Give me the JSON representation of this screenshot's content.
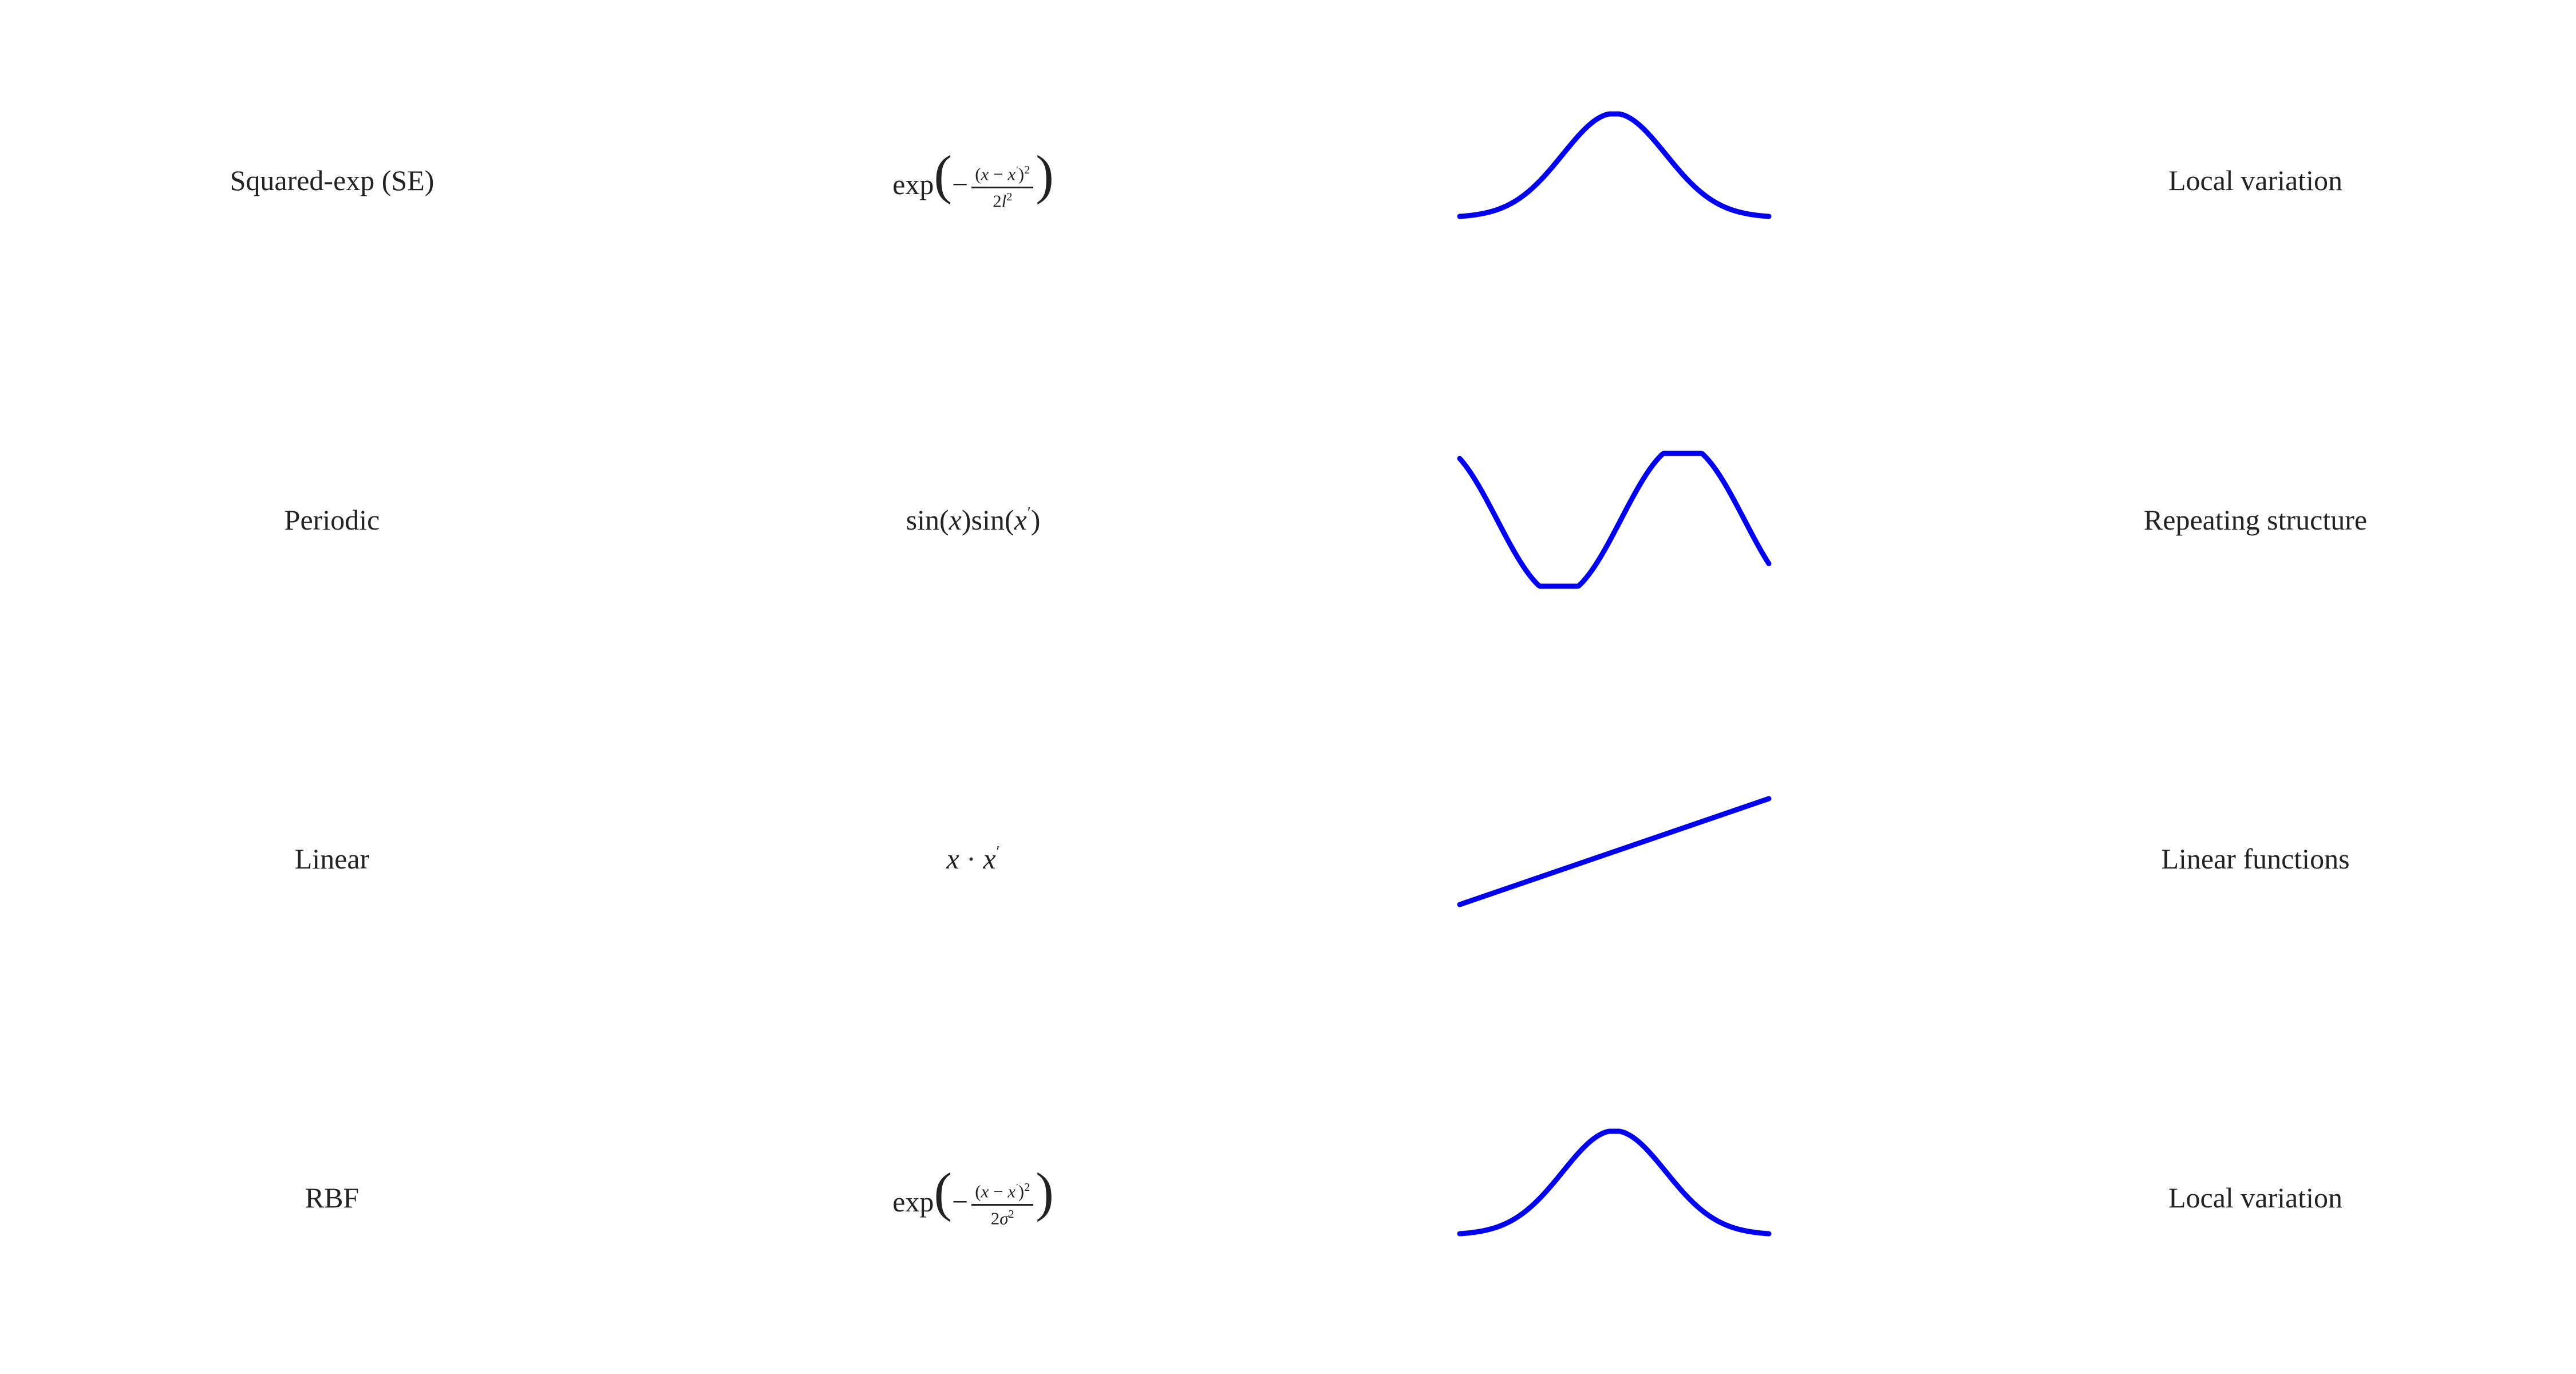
{
  "kernels": [
    {
      "name": "Squared-exp (SE)",
      "formula": {
        "type": "exp-frac",
        "func": "exp",
        "num_var": "x",
        "num_var2": "x",
        "den_coef": "2",
        "den_sym": "l",
        "den_pow": "2"
      },
      "curve": "gaussian",
      "use": "Local variation"
    },
    {
      "name": "Periodic",
      "formula": {
        "type": "sin",
        "func": "sin",
        "var1": "x",
        "var2": "x"
      },
      "curve": "sine",
      "use": "Repeating structure"
    },
    {
      "name": "Linear",
      "formula": {
        "type": "dot",
        "var1": "x",
        "op": "·",
        "var2": "x"
      },
      "curve": "linear",
      "use": "Linear functions"
    },
    {
      "name": "RBF",
      "formula": {
        "type": "exp-frac",
        "func": "exp",
        "num_var": "x",
        "num_var2": "x",
        "den_coef": "2",
        "den_sym": "σ",
        "den_pow": "2"
      },
      "curve": "gaussian",
      "use": "Local variation"
    }
  ],
  "style": {
    "curve_color": "#0000ee",
    "text_color": "#222222",
    "background": "#ffffff"
  }
}
